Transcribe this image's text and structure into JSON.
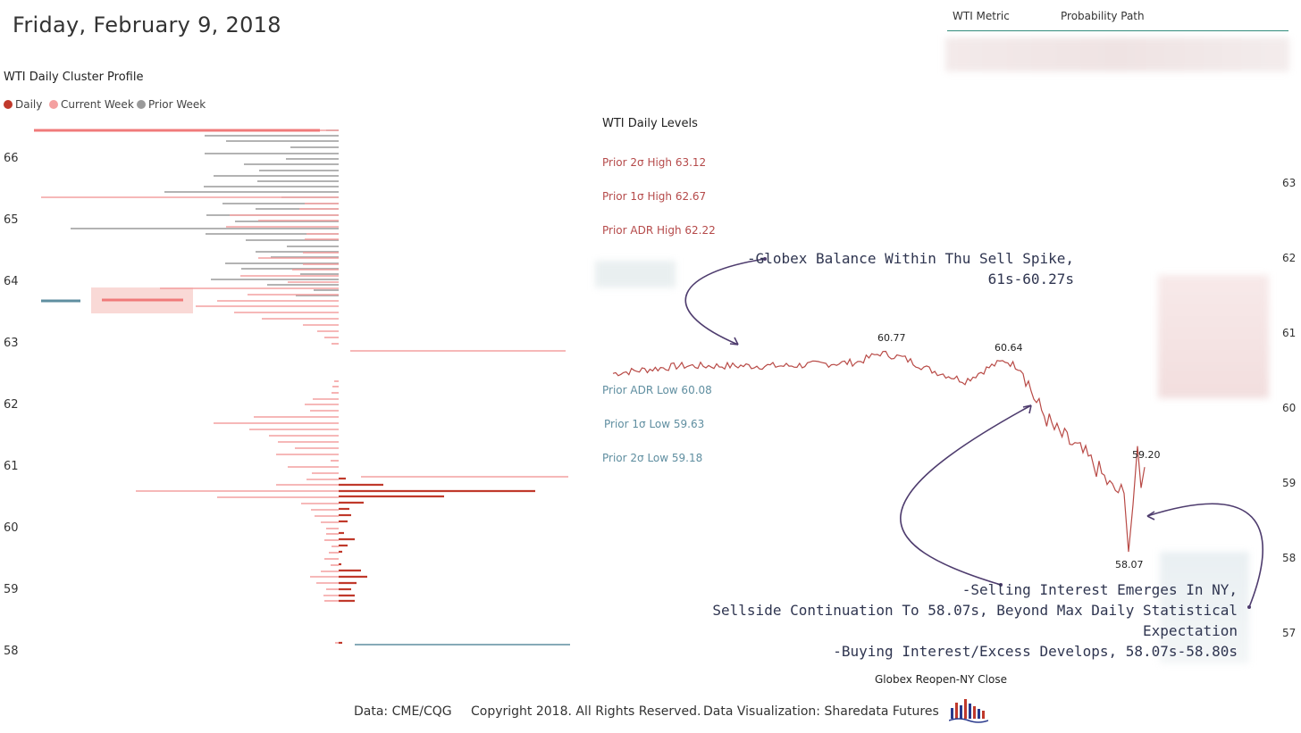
{
  "page": {
    "title": "Friday, February 9, 2018"
  },
  "table": {
    "col1": "WTI Metric",
    "col2": "Probability Path"
  },
  "profile": {
    "title": "WTI Daily Cluster Profile",
    "legend": [
      {
        "label": "Daily",
        "color": "#c0392b"
      },
      {
        "label": "Current Week",
        "color": "#f4a0a0"
      },
      {
        "label": "Prior Week",
        "color": "#9a9a9a"
      }
    ],
    "y_ticks": [
      "66",
      "65",
      "64",
      "63",
      "62",
      "61",
      "60",
      "59",
      "58"
    ]
  },
  "levels": {
    "title": "WTI Daily Levels",
    "items": [
      {
        "label": "Prior 2σ High 63.12",
        "color": "#b54a4a"
      },
      {
        "label": "Prior 1σ High 62.67",
        "color": "#b54a4a"
      },
      {
        "label": "Prior ADR High 62.22",
        "color": "#b54a4a"
      },
      {
        "label": "Prior ADR Low 60.08",
        "color": "#5f8ea0"
      },
      {
        "label": "Prior 1σ Low 59.63",
        "color": "#5f8ea0"
      },
      {
        "label": "Prior 2σ Low 59.18",
        "color": "#5f8ea0"
      }
    ]
  },
  "annotations": {
    "a1_line1": "-Globex Balance Within Thu Sell Spike,",
    "a1_line2": "61s-60.27s",
    "a2_line1": "-Selling Interest Emerges In NY,",
    "a2_line2": "Sellside Continuation To 58.07s, Beyond Max Daily Statistical Expectation",
    "a2_line3": "-Buying Interest/Excess Develops, 58.07s-58.80s"
  },
  "chart_data": [
    {
      "type": "bar",
      "orientation": "horizontal",
      "title": "WTI Daily Cluster Profile",
      "ylim": [
        57.9,
        66.6
      ],
      "y_ticks": [
        58,
        59,
        60,
        61,
        62,
        63,
        64,
        65,
        66
      ],
      "series": [
        {
          "name": "Prior Week",
          "color": "#9a9a9a"
        },
        {
          "name": "Current Week",
          "color": "#f4a0a0"
        },
        {
          "name": "Daily",
          "color": "#c0392b"
        }
      ]
    },
    {
      "type": "line",
      "title": "WTI Daily Levels",
      "xlabel": "Globex Reopen-NY Close",
      "ylim": [
        56.8,
        63.3
      ],
      "y_ticks": [
        57,
        58,
        59,
        60,
        61,
        62,
        63
      ],
      "annotated_points": [
        {
          "label": "60.77",
          "value": 60.77
        },
        {
          "label": "60.64",
          "value": 60.64
        },
        {
          "label": "58.07",
          "value": 58.07
        },
        {
          "label": "59.20",
          "value": 59.2
        }
      ]
    }
  ],
  "footer": {
    "source": "Data: CME/CQG",
    "copyright": "Copyright 2018. All Rights Reserved.",
    "viz": "Data Visualization: Sharedata Futures"
  }
}
